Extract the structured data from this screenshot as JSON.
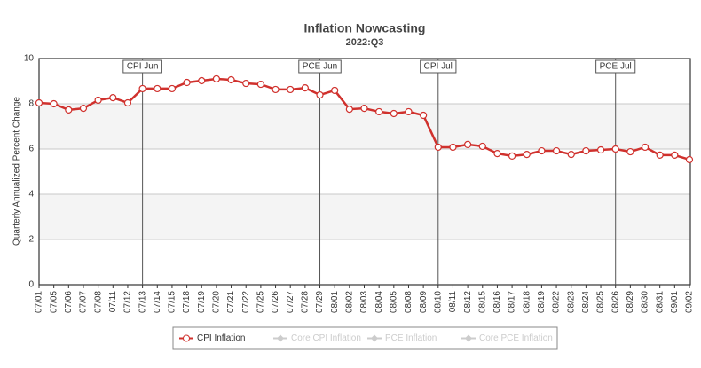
{
  "chart_data": {
    "type": "line",
    "title": "Inflation Nowcasting",
    "subtitle": "2022:Q3",
    "y_label": "Quarterly Annualized Percent Change",
    "categories": [
      "07/01",
      "07/05",
      "07/06",
      "07/07",
      "07/08",
      "07/11",
      "07/12",
      "07/13",
      "07/14",
      "07/15",
      "07/18",
      "07/19",
      "07/20",
      "07/21",
      "07/22",
      "07/25",
      "07/26",
      "07/27",
      "07/28",
      "07/29",
      "08/01",
      "08/02",
      "08/03",
      "08/04",
      "08/05",
      "08/08",
      "08/09",
      "08/10",
      "08/11",
      "08/12",
      "08/15",
      "08/16",
      "08/17",
      "08/18",
      "08/19",
      "08/22",
      "08/23",
      "08/24",
      "08/25",
      "08/26",
      "08/29",
      "08/30",
      "08/31",
      "09/01",
      "09/02"
    ],
    "series": [
      {
        "name": "CPI Inflation",
        "color": "#d0312d",
        "values": [
          8.04,
          8.0,
          7.73,
          7.8,
          8.16,
          8.27,
          8.04,
          8.67,
          8.67,
          8.67,
          8.94,
          9.02,
          9.1,
          9.06,
          8.9,
          8.86,
          8.63,
          8.63,
          8.7,
          8.39,
          8.59,
          7.76,
          7.8,
          7.65,
          7.57,
          7.65,
          7.49,
          6.08,
          6.08,
          6.2,
          6.12,
          5.8,
          5.69,
          5.76,
          5.92,
          5.92,
          5.76,
          5.92,
          5.96,
          6.0,
          5.88,
          6.08,
          5.73,
          5.73,
          5.53
        ]
      }
    ],
    "inactive_series": [
      {
        "name": "Core CPI Inflation",
        "color": "#cccccc"
      },
      {
        "name": "PCE Inflation",
        "color": "#cccccc"
      },
      {
        "name": "Core PCE Inflation",
        "color": "#cccccc"
      }
    ],
    "annotations": [
      {
        "x": "07/13",
        "label": "CPI Jun"
      },
      {
        "x": "07/29",
        "label": "PCE Jun"
      },
      {
        "x": "08/10",
        "label": "CPI Jul"
      },
      {
        "x": "08/26",
        "label": "PCE Jul"
      }
    ],
    "ylim": [
      0,
      10
    ],
    "yticks": [
      0,
      2,
      4,
      6,
      8,
      10
    ],
    "grid": true,
    "legend": "bottom"
  }
}
